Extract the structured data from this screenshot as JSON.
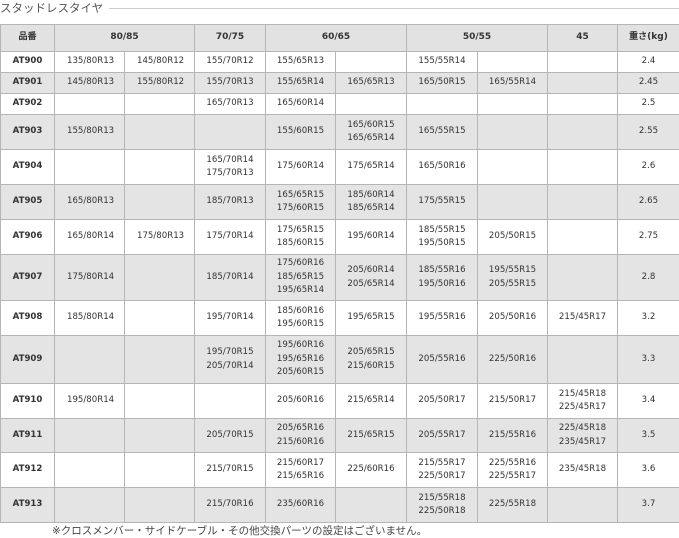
{
  "title": "スタッドレスタイヤ",
  "headers": [
    "品番",
    "80/85",
    "70/75",
    "60/65",
    "50/55",
    "45",
    "重さ(kg)"
  ],
  "rows": [
    {
      "code": "AT900",
      "c": [
        [
          "135/80R13"
        ],
        [
          "145/80R12"
        ],
        [
          "155/70R12"
        ],
        [
          "155/65R13"
        ],
        [],
        [
          "155/55R14"
        ],
        [],
        []
      ],
      "weight": "2.4"
    },
    {
      "code": "AT901",
      "c": [
        [
          "145/80R13"
        ],
        [
          "155/80R12"
        ],
        [
          "155/70R13"
        ],
        [
          "155/65R14"
        ],
        [
          "165/65R13"
        ],
        [
          "165/50R15"
        ],
        [
          "165/55R14"
        ],
        []
      ],
      "weight": "2.45"
    },
    {
      "code": "AT902",
      "c": [
        [],
        [],
        [
          "165/70R13"
        ],
        [
          "165/60R14"
        ],
        [],
        [],
        [],
        []
      ],
      "weight": "2.5"
    },
    {
      "code": "AT903",
      "c": [
        [
          "155/80R13"
        ],
        [],
        [],
        [
          "155/60R15"
        ],
        [
          "165/60R15",
          "165/65R14"
        ],
        [
          "165/55R15"
        ],
        [],
        []
      ],
      "weight": "2.55"
    },
    {
      "code": "AT904",
      "c": [
        [],
        [],
        [
          "165/70R14",
          "175/70R13"
        ],
        [
          "175/60R14"
        ],
        [
          "175/65R14"
        ],
        [
          "165/50R16"
        ],
        [],
        []
      ],
      "weight": "2.6"
    },
    {
      "code": "AT905",
      "c": [
        [
          "165/80R13"
        ],
        [],
        [
          "185/70R13"
        ],
        [
          "165/65R15",
          "175/60R15"
        ],
        [
          "185/60R14",
          "185/65R14"
        ],
        [
          "175/55R15"
        ],
        [],
        []
      ],
      "weight": "2.65"
    },
    {
      "code": "AT906",
      "c": [
        [
          "165/80R14"
        ],
        [
          "175/80R13"
        ],
        [
          "175/70R14"
        ],
        [
          "175/65R15",
          "185/60R15"
        ],
        [
          "195/60R14"
        ],
        [
          "185/55R15",
          "195/50R15"
        ],
        [
          "205/50R15"
        ],
        []
      ],
      "weight": "2.75"
    },
    {
      "code": "AT907",
      "c": [
        [
          "175/80R14"
        ],
        [],
        [
          "185/70R14"
        ],
        [
          "175/60R16",
          "185/65R15",
          "195/65R14"
        ],
        [
          "205/60R14",
          "205/65R14"
        ],
        [
          "185/55R16",
          "195/50R16"
        ],
        [
          "195/55R15",
          "205/55R15"
        ],
        []
      ],
      "weight": "2.8"
    },
    {
      "code": "AT908",
      "c": [
        [
          "185/80R14"
        ],
        [],
        [
          "195/70R14"
        ],
        [
          "185/60R16",
          "195/60R15"
        ],
        [
          "195/65R15"
        ],
        [
          "195/55R16"
        ],
        [
          "205/50R16"
        ],
        [
          "215/45R17"
        ]
      ],
      "weight": "3.2"
    },
    {
      "code": "AT909",
      "c": [
        [],
        [],
        [
          "195/70R15",
          "205/70R14"
        ],
        [
          "195/60R16",
          "195/65R16",
          "205/60R15"
        ],
        [
          "205/65R15",
          "215/60R15"
        ],
        [
          "205/55R16"
        ],
        [
          "225/50R16"
        ],
        []
      ],
      "weight": "3.3"
    },
    {
      "code": "AT910",
      "c": [
        [
          "195/80R14"
        ],
        [],
        [],
        [
          "205/60R16"
        ],
        [
          "215/65R14"
        ],
        [
          "205/50R17"
        ],
        [
          "215/50R17"
        ],
        [
          "215/45R18",
          "225/45R17"
        ]
      ],
      "weight": "3.4"
    },
    {
      "code": "AT911",
      "c": [
        [],
        [],
        [
          "205/70R15"
        ],
        [
          "205/65R16",
          "215/60R16"
        ],
        [
          "215/65R15"
        ],
        [
          "205/55R17"
        ],
        [
          "215/55R16"
        ],
        [
          "225/45R18",
          "235/45R17"
        ]
      ],
      "weight": "3.5"
    },
    {
      "code": "AT912",
      "c": [
        [],
        [],
        [
          "215/70R15"
        ],
        [
          "215/60R17",
          "215/65R16"
        ],
        [
          "225/60R16"
        ],
        [
          "215/55R17",
          "225/50R17"
        ],
        [
          "225/55R16",
          "225/55R17"
        ],
        [
          "235/45R18"
        ]
      ],
      "weight": "3.6"
    },
    {
      "code": "AT913",
      "c": [
        [],
        [],
        [
          "215/70R16"
        ],
        [
          "235/60R16"
        ],
        [],
        [
          "215/55R18",
          "225/50R18"
        ],
        [
          "225/55R18"
        ],
        []
      ],
      "weight": "3.7"
    }
  ],
  "note": "※クロスメンバー・サイドケーブル・その他交換パーツの設定はございません。"
}
